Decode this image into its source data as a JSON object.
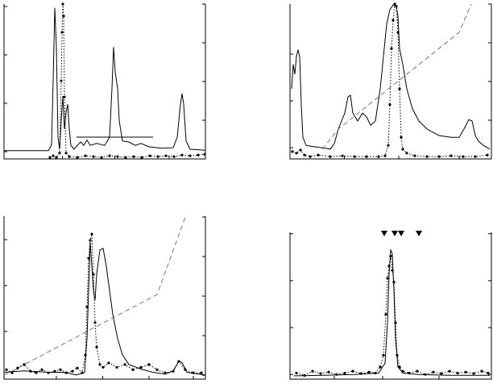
{
  "chart_data": [
    {
      "type": "line",
      "box": "top-left",
      "xlim": [
        0,
        100
      ],
      "xticks": [
        29,
        55,
        82
      ],
      "ylim": [
        -0.15,
        3.05
      ],
      "yticks": [
        0,
        1,
        2,
        3
      ],
      "y2lim": [
        0,
        4
      ],
      "y2ticks": [
        1,
        2,
        3,
        4
      ],
      "series": [
        {
          "color": "#000000",
          "style": "solid",
          "x": [
            0,
            22,
            23.6,
            24.4,
            25.2,
            26,
            26.8,
            27.6,
            28.4,
            29.2,
            30,
            30.8,
            31.6,
            32.4,
            33.2,
            34.8,
            36.4,
            38,
            39.6,
            41.2,
            42.8,
            46,
            50,
            52.4,
            53.6,
            54.4,
            55.2,
            56.4,
            57.2,
            58.8,
            62,
            65.2,
            68,
            72,
            78,
            84,
            86,
            87.6,
            88.4,
            89.2,
            90.4,
            92.4,
            100
          ],
          "values": [
            0.02,
            0.02,
            0.14,
            1.48,
            2.97,
            2.16,
            0.3,
            0.05,
            0.64,
            1.15,
            0.47,
            0.81,
            0.98,
            0.47,
            0.13,
            0.05,
            0.13,
            0.2,
            0.13,
            0.24,
            0.13,
            0.17,
            0.13,
            0.3,
            1.31,
            2.16,
            1.65,
            1.31,
            0.64,
            0.22,
            0.2,
            0.13,
            0.17,
            0.1,
            0.07,
            0.08,
            0.3,
            0.98,
            1.2,
            0.98,
            0.22,
            0.05,
            0.03
          ]
        },
        {
          "color": "#000000",
          "style": "solid",
          "x": [
            36,
            74
          ],
          "values": [
            0.3,
            0.3
          ]
        },
        {
          "color": "#000000",
          "style": "dotted",
          "marker": true,
          "axis": "y2",
          "x": [
            22.8,
            24.4,
            26,
            27.6,
            28.4,
            28.8,
            29.2,
            29.6,
            30,
            30.8,
            32.4,
            36.4,
            40.4,
            44.4,
            48.4,
            52.4,
            56.4,
            60.4,
            64.4,
            68.4,
            72.4,
            76.4,
            80.4,
            84.4,
            88.4,
            92.4,
            96.4,
            99.6
          ],
          "values": [
            0.04,
            0.08,
            0.04,
            0.15,
            2.02,
            3.27,
            4.0,
            3.69,
            1.6,
            0.15,
            0.06,
            0.04,
            0.08,
            0.06,
            0.04,
            0.08,
            0.06,
            0.04,
            0.06,
            0.04,
            0.08,
            0.06,
            0.08,
            0.06,
            0.1,
            0.08,
            0.1,
            0.12
          ]
        }
      ]
    },
    {
      "type": "line",
      "box": "top-right",
      "xlim": [
        0,
        100
      ],
      "xticks": [
        27,
        54,
        84
      ],
      "ylim": [
        -0.24,
        3.07
      ],
      "yticks": [
        0,
        1,
        2
      ],
      "y2lim": [
        0,
        4
      ],
      "y2ticks": [
        1,
        2,
        3,
        4
      ],
      "series": [
        {
          "color": "#000000",
          "style": "solid",
          "x": [
            0.8,
            1.6,
            2.4,
            3.2,
            4,
            4.8,
            5.6,
            6.4,
            8,
            12,
            16,
            20,
            22,
            24,
            25.6,
            27.2,
            28.8,
            30,
            31.2,
            33.6,
            36,
            38,
            40,
            42.4,
            44.8,
            46.4,
            48,
            49.6,
            51.2,
            52.8,
            53.6,
            54.4,
            56,
            58,
            60.8,
            64,
            68,
            74,
            80,
            84,
            86.4,
            88.8,
            90.4,
            92,
            93.6,
            96,
            99.2
          ],
          "values": [
            1.26,
            1.78,
            1.57,
            1.95,
            2.09,
            1.95,
            0.91,
            0.22,
            0.05,
            0.02,
            0,
            -0.03,
            0.09,
            0.4,
            0.57,
            0.74,
            1.09,
            1.12,
            0.74,
            0.57,
            0.74,
            0.66,
            0.48,
            0.57,
            1.26,
            1.95,
            2.64,
            2.95,
            3.05,
            3.02,
            2.81,
            2.12,
            1.78,
            1.26,
            0.83,
            0.57,
            0.4,
            0.26,
            0.22,
            0.22,
            0.4,
            0.6,
            0.57,
            0.26,
            0.14,
            0.05,
            -0.03
          ]
        },
        {
          "color": "#777777",
          "style": "dashed",
          "axis": "y2",
          "x": [
            16,
            24,
            84,
            90
          ],
          "values": [
            0.25,
            0.77,
            3.27,
            4.0
          ]
        },
        {
          "color": "#000000",
          "style": "dotted",
          "marker": true,
          "axis": "y2",
          "x": [
            1.2,
            3.2,
            5.2,
            7.2,
            10,
            14,
            20,
            26,
            32,
            38,
            44,
            47.2,
            48.8,
            49.6,
            50.4,
            51.2,
            52,
            52.8,
            53.6,
            54.4,
            55.2,
            56,
            58,
            62,
            68,
            74,
            80,
            86,
            92,
            98
          ],
          "values": [
            0.19,
            0.15,
            0.23,
            0.1,
            0.06,
            0.1,
            0.06,
            0.08,
            0.06,
            0.06,
            0.06,
            0.08,
            0.35,
            1.4,
            2.85,
            3.58,
            4.0,
            3.94,
            3.27,
            1.81,
            0.56,
            0.25,
            0.15,
            0.08,
            0.06,
            0.06,
            0.08,
            0.06,
            0.06,
            0.1
          ]
        }
      ]
    },
    {
      "type": "line",
      "box": "bottom-left",
      "xlim": [
        0,
        100
      ],
      "xticks": [
        26,
        49,
        72,
        94
      ],
      "ylim": [
        -0.04,
        3.51
      ],
      "yticks": [
        1,
        2,
        3
      ],
      "y2lim": [
        -0.1,
        4.02
      ],
      "y2ticks": [
        0,
        1,
        2,
        3,
        4
      ],
      "series": [
        {
          "color": "#000000",
          "style": "solid",
          "x": [
            0,
            10,
            22,
            30,
            36,
            40,
            41.2,
            42,
            42.8,
            43.6,
            44.4,
            45.2,
            46,
            47.6,
            49.2,
            50.8,
            52.4,
            54,
            56.4,
            58.8,
            62,
            68,
            74,
            80,
            84,
            86.8,
            88.4,
            90.8,
            100
          ],
          "values": [
            0.11,
            0.14,
            0.11,
            0.11,
            0.05,
            0.11,
            0.84,
            1.89,
            2.95,
            2.42,
            1.89,
            1.68,
            2.25,
            2.77,
            2.81,
            2.42,
            1.89,
            1.37,
            0.84,
            0.49,
            0.28,
            0.18,
            0.11,
            0.07,
            0.14,
            0.35,
            0.32,
            0.11,
            0.05
          ]
        },
        {
          "color": "#777777",
          "style": "dashed",
          "axis": "y2",
          "x": [
            0,
            76,
            90
          ],
          "values": [
            0,
            2.04,
            4.0
          ]
        },
        {
          "color": "#000000",
          "style": "dotted",
          "marker": true,
          "axis": "y2",
          "x": [
            1.2,
            4,
            6.8,
            10,
            13.2,
            16,
            18.8,
            22,
            25.2,
            28,
            30.8,
            34,
            36.4,
            38.8,
            40.4,
            41.2,
            42,
            42.8,
            43.6,
            44.4,
            45.2,
            46,
            47.6,
            49.2,
            52,
            56,
            60,
            64,
            68,
            72,
            76,
            80,
            84,
            86.8,
            90,
            94,
            98
          ],
          "values": [
            0.14,
            0.06,
            0.18,
            0.27,
            0.1,
            0.06,
            0.14,
            0.06,
            0.1,
            0.14,
            0.06,
            0.1,
            0.18,
            0.06,
            0.51,
            1.73,
            2.96,
            3.41,
            3.57,
            2.55,
            1.33,
            0.71,
            0.27,
            0.2,
            0.31,
            0.2,
            0.27,
            0.14,
            0.2,
            0.27,
            0.14,
            0.06,
            0.1,
            0.35,
            0.14,
            0.06,
            0.06
          ]
        }
      ]
    },
    {
      "type": "line",
      "box": "bottom-right",
      "xlim": [
        0,
        100
      ],
      "xticks": [
        22,
        46,
        74
      ],
      "ylim": [
        -0.1,
        3.03
      ],
      "yticks": [
        0,
        1,
        2,
        3
      ],
      "y2lim": [
        -0.1,
        3.03
      ],
      "y2ticks": [
        0,
        1,
        2,
        3
      ],
      "markers": {
        "x": [
          46.8,
          52,
          55.2,
          64
        ]
      },
      "series": [
        {
          "color": "#000000",
          "style": "solid",
          "x": [
            2,
            16,
            32,
            44,
            47.2,
            48.4,
            49.2,
            50,
            50.8,
            51.6,
            52.4,
            53.6,
            56,
            64,
            80,
            99.2
          ],
          "values": [
            -0.03,
            -0.02,
            0,
            0.03,
            0.24,
            1.1,
            2.14,
            2.66,
            2.57,
            1.79,
            0.76,
            0.16,
            0.03,
            0,
            -0.02,
            -0.02
          ]
        },
        {
          "color": "#000000",
          "style": "dotted",
          "marker": true,
          "axis": "y2",
          "x": [
            3.2,
            7.2,
            11.2,
            15.2,
            19.2,
            23.2,
            27.2,
            31.2,
            35.2,
            39.2,
            42.4,
            44.8,
            46.4,
            47.6,
            48.4,
            49.2,
            50,
            50.8,
            51.6,
            52.4,
            53.2,
            54.4,
            56,
            59.2,
            63.2,
            67.2,
            71.2,
            75.2,
            79.2,
            83.2,
            87.2,
            91.2,
            95.2,
            98.4
          ],
          "values": [
            0.03,
            -0.02,
            0.07,
            0.02,
            0.05,
            0,
            0.03,
            0.07,
            0.02,
            0.05,
            0.03,
            0.16,
            0.41,
            1.28,
            2.05,
            2.31,
            2.52,
            2.22,
            1.97,
            1.1,
            0.41,
            0.16,
            0.07,
            0.03,
            0.07,
            0,
            0.05,
            0.02,
            0.07,
            0.03,
            0.05,
            0.02,
            0.07,
            0.03
          ]
        }
      ]
    }
  ]
}
